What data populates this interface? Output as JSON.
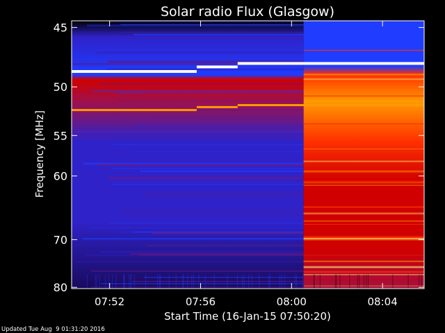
{
  "chart_data": {
    "type": "heatmap",
    "title": "Solar radio Flux (Glasgow)",
    "xlabel": "Start Time (16-Jan-15 07:50:20)",
    "ylabel": "Frequency [MHz]",
    "footer": "Updated Tue Aug  9 01:31:20 2016",
    "x_start_minutes": 0,
    "x_end_minutes": 15.5,
    "x_ticks": [
      {
        "label": "07:52",
        "minutes": 1.67
      },
      {
        "label": "07:56",
        "minutes": 5.67
      },
      {
        "label": "08:00",
        "minutes": 9.67
      },
      {
        "label": "08:04",
        "minutes": 13.67
      }
    ],
    "y_range_mhz": [
      44.5,
      80.3
    ],
    "y_scale": "reciprocal",
    "y_ticks": [
      {
        "label": "45",
        "mhz": 45
      },
      {
        "label": "50",
        "mhz": 50
      },
      {
        "label": "55",
        "mhz": 55
      },
      {
        "label": "60",
        "mhz": 60
      },
      {
        "label": "70",
        "mhz": 70
      },
      {
        "label": "80",
        "mhz": 80
      }
    ],
    "burst_onset_minutes": 10.2,
    "colormap": [
      "#000000",
      "#1a0a5c",
      "#2f22c8",
      "#1f3cff",
      "#5a1a8a",
      "#a0104a",
      "#d00000",
      "#ff3000",
      "#ff9a00",
      "#ffe070",
      "#ffffff"
    ]
  }
}
